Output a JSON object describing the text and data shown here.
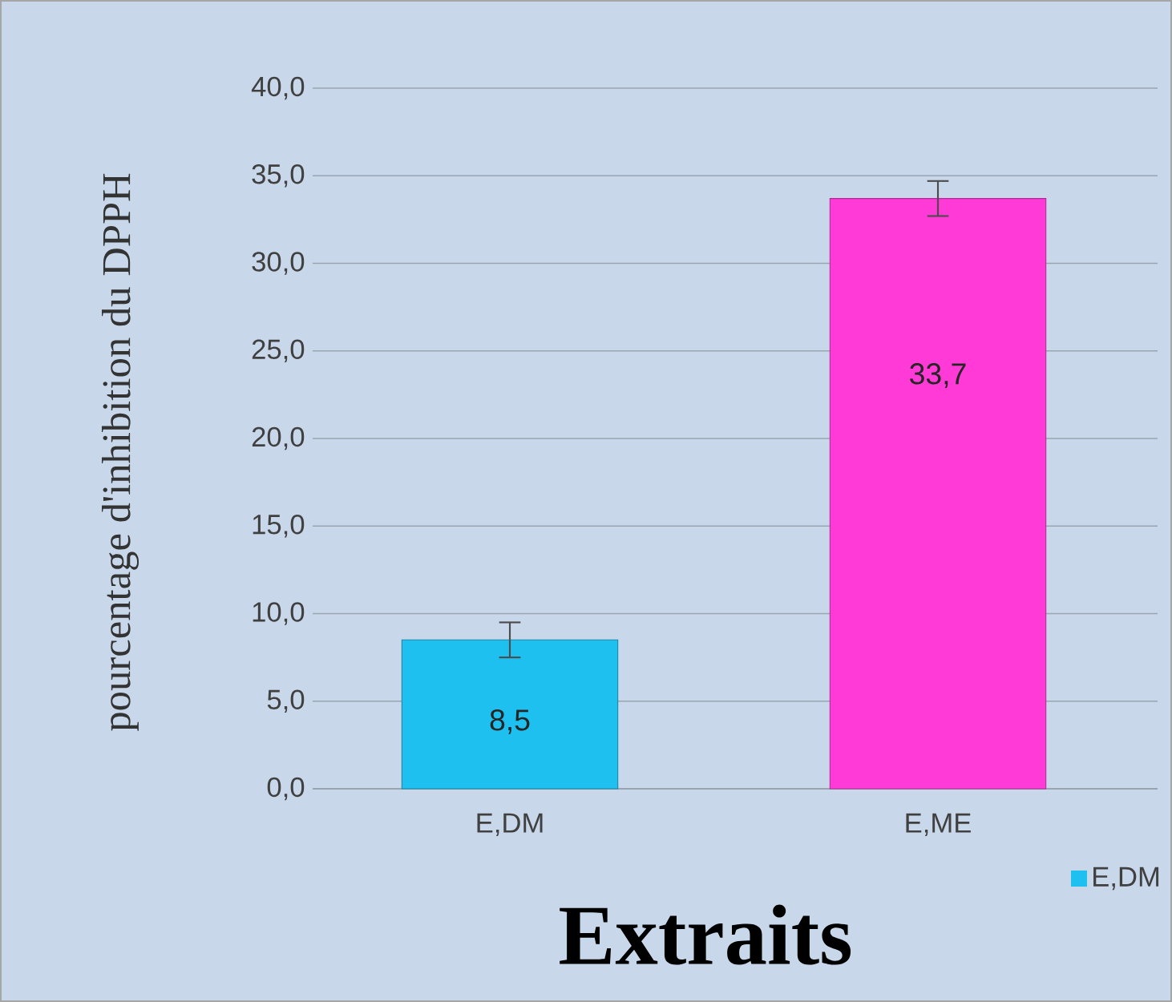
{
  "chart_data": {
    "type": "bar",
    "xlabel": "Extraits",
    "ylabel": "pourcentage d'inhibition du DPPH",
    "categories": [
      "E,DM",
      "E,ME"
    ],
    "series": [
      {
        "name": "E,DM",
        "color": "#1ec0f0",
        "colors": [
          "#1ec0f0",
          "#ff3ad6"
        ],
        "values": [
          8.5,
          33.7
        ],
        "errors": [
          1,
          1
        ],
        "value_labels": [
          "8,5",
          "33,7"
        ]
      }
    ],
    "ylim": [
      0,
      40
    ],
    "yticks": [
      {
        "value": 0,
        "label": "0,0"
      },
      {
        "value": 5,
        "label": "5,0"
      },
      {
        "value": 10,
        "label": "10,0"
      },
      {
        "value": 15,
        "label": "15,0"
      },
      {
        "value": 20,
        "label": "20,0"
      },
      {
        "value": 25,
        "label": "25,0"
      },
      {
        "value": 30,
        "label": "30,0"
      },
      {
        "value": 35,
        "label": "35,0"
      },
      {
        "value": 40,
        "label": "40,0"
      }
    ],
    "grid": "y",
    "legend": "bottom right"
  }
}
